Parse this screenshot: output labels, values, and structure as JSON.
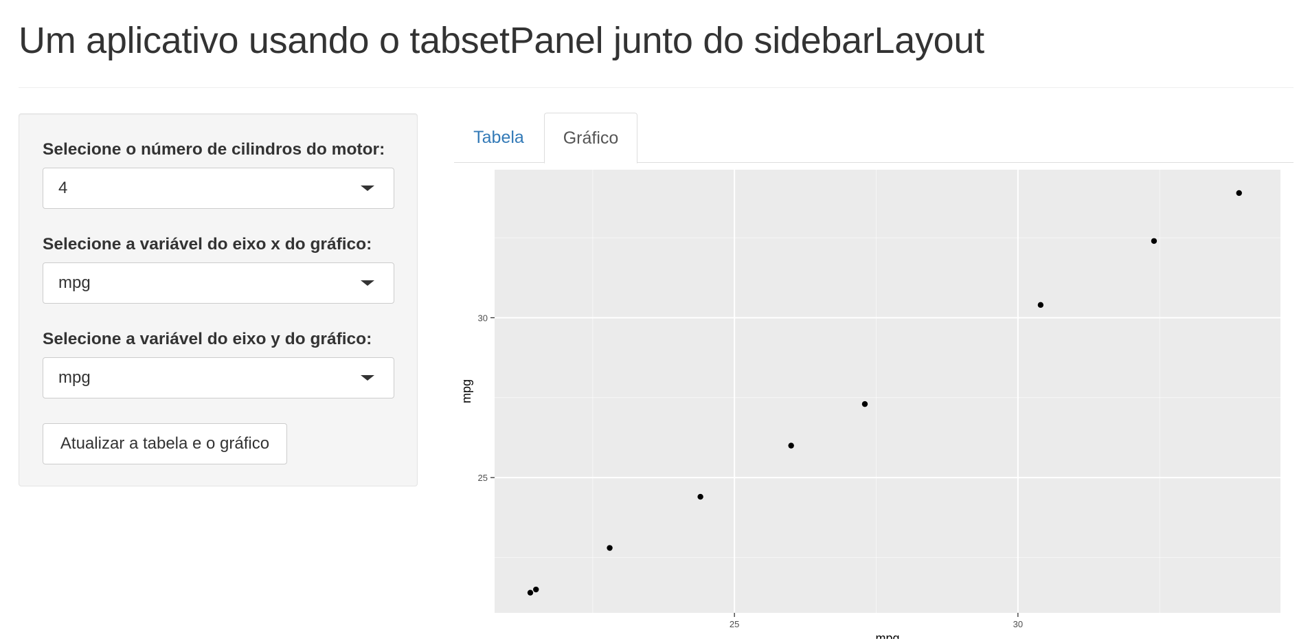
{
  "page": {
    "title": "Um aplicativo usando o tabsetPanel junto do sidebarLayout"
  },
  "sidebar": {
    "cylinders": {
      "label": "Selecione o número de cilindros do motor:",
      "value": "4"
    },
    "x_variable": {
      "label": "Selecione a variável do eixo x do gráfico:",
      "value": "mpg"
    },
    "y_variable": {
      "label": "Selecione a variável do eixo y do gráfico:",
      "value": "mpg"
    },
    "update_button": "Atualizar a tabela e o gráfico"
  },
  "tabs": {
    "items": [
      {
        "label": "Tabela",
        "active": false
      },
      {
        "label": "Gráfico",
        "active": true
      }
    ]
  },
  "colors": {
    "panel_bg": "#ebebeb",
    "grid": "#ffffff",
    "point": "#000000",
    "tab_link": "#337ab7"
  },
  "chart_data": {
    "type": "scatter",
    "xlabel": "mpg",
    "ylabel": "mpg",
    "xlim": [
      21.4,
      34.0
    ],
    "ylim": [
      21.4,
      34.0
    ],
    "x_ticks": [
      25,
      30
    ],
    "y_ticks": [
      25,
      30
    ],
    "grid": true,
    "points": [
      {
        "x": 21.4,
        "y": 21.4
      },
      {
        "x": 21.5,
        "y": 21.5
      },
      {
        "x": 22.8,
        "y": 22.8
      },
      {
        "x": 24.4,
        "y": 24.4
      },
      {
        "x": 26.0,
        "y": 26.0
      },
      {
        "x": 27.3,
        "y": 27.3
      },
      {
        "x": 30.4,
        "y": 30.4
      },
      {
        "x": 32.4,
        "y": 32.4
      },
      {
        "x": 33.9,
        "y": 33.9
      }
    ]
  }
}
